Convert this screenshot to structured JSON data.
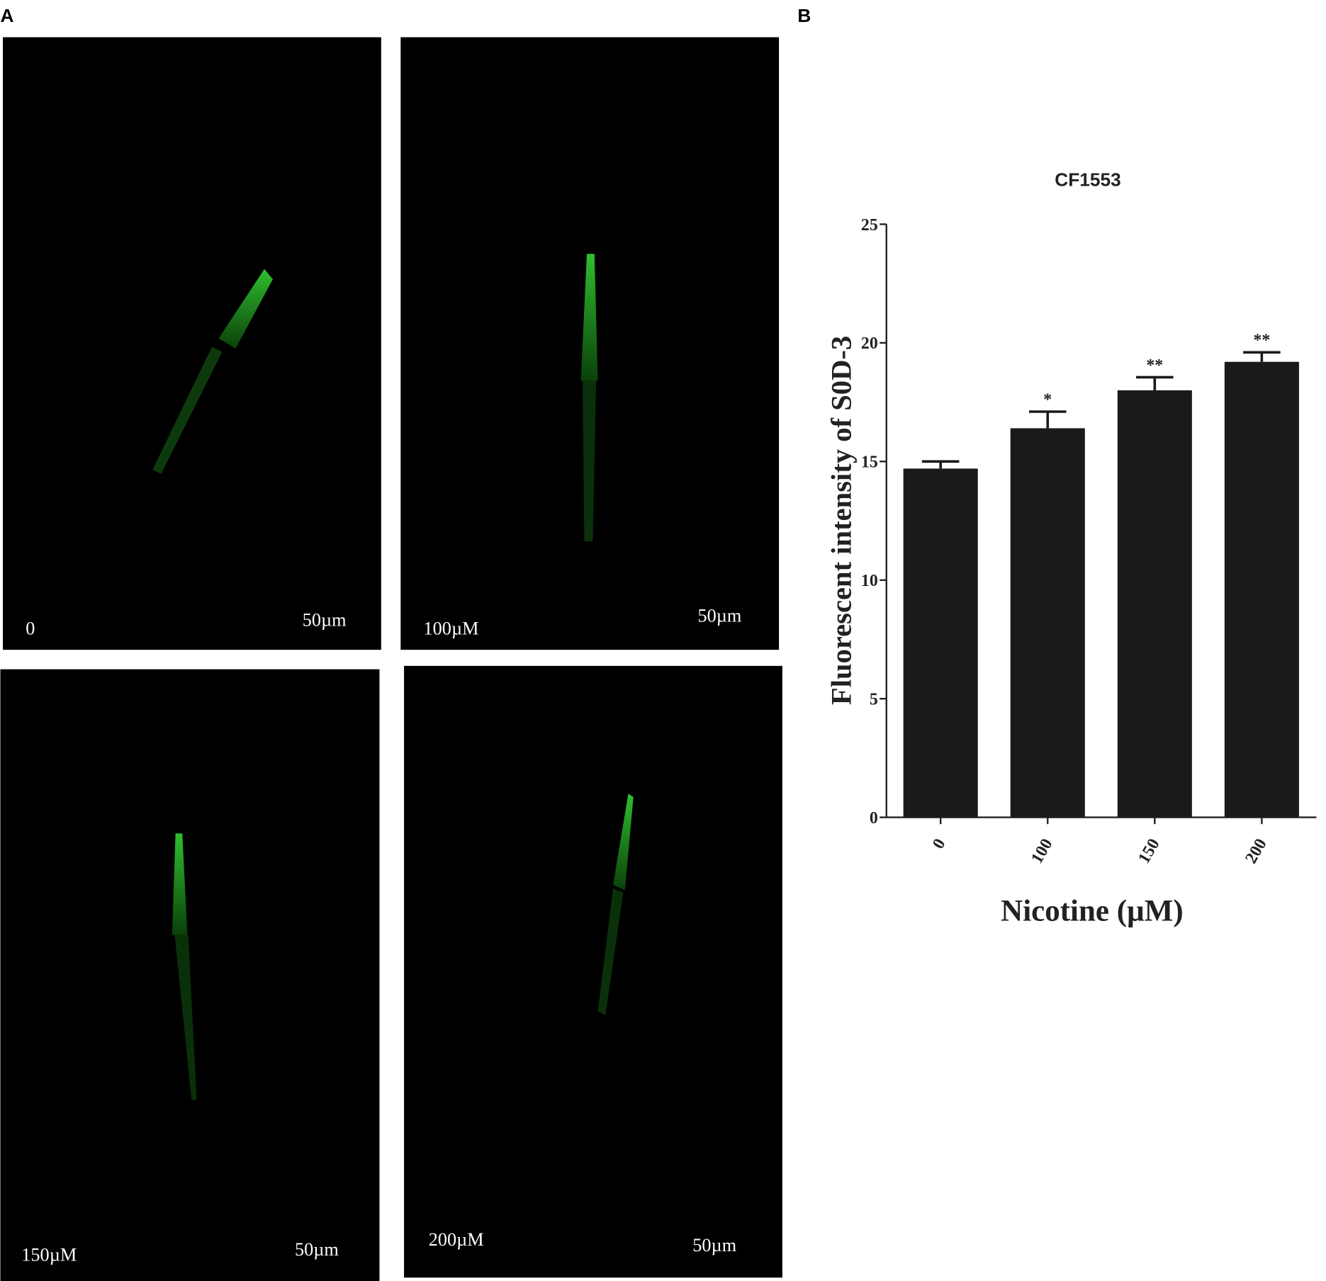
{
  "panel_labels": [
    "A",
    "B"
  ],
  "images": [
    {
      "label": "0",
      "scale": "50µm"
    },
    {
      "label": "100µM",
      "scale": "50µm"
    },
    {
      "label": "150µM",
      "scale": "50µm"
    },
    {
      "label": "200µM",
      "scale": "50µm"
    }
  ],
  "chart_data": {
    "type": "bar",
    "title": "CF1553",
    "x_label": "Nicotine (µM)",
    "y_label": "Fluorescent intensity of S0D-3",
    "categories": [
      "0",
      "100",
      "150",
      "200"
    ],
    "values": [
      14.7,
      16.4,
      18.0,
      19.2
    ],
    "errors": [
      0.3,
      0.7,
      0.55,
      0.4
    ],
    "significance": [
      null,
      "*",
      "**",
      "**"
    ],
    "color": "#1a1a1a",
    "ylim": [
      0,
      25
    ],
    "yticks": [
      0,
      5,
      10,
      15,
      20,
      25
    ]
  }
}
